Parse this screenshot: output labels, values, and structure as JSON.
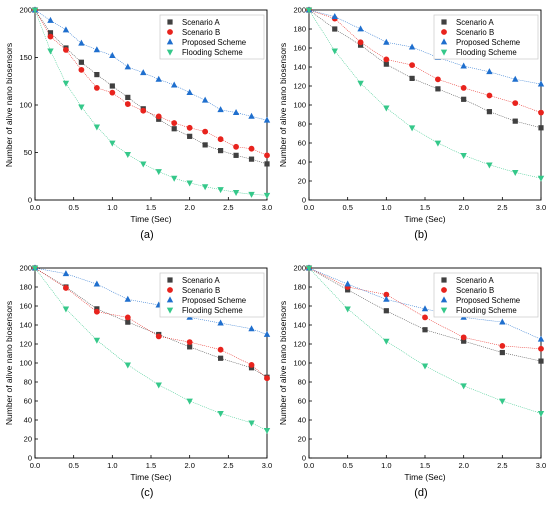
{
  "figure_title": "",
  "colors": {
    "scenario_a": "#404040",
    "scenario_b": "#e8231d",
    "proposed": "#1f6fce",
    "flooding": "#35c88a"
  },
  "chart_data": [
    {
      "type": "line",
      "label": "(a)",
      "xlabel": "Time (Sec)",
      "ylabel": "Number of alive nano biosensors",
      "xlim": [
        0,
        3
      ],
      "ylim": [
        0,
        200
      ],
      "xticks": [
        "0.0",
        "0.5",
        "1.0",
        "1.5",
        "2.0",
        "2.5",
        "3.0"
      ],
      "yticks": [
        "0",
        "50",
        "100",
        "150",
        "200"
      ],
      "legend_position": "top-right",
      "series": [
        {
          "name": "Scenario A",
          "marker": "square",
          "x": [
            0,
            0.2,
            0.4,
            0.6,
            0.8,
            1.0,
            1.2,
            1.4,
            1.6,
            1.8,
            2.0,
            2.2,
            2.4,
            2.6,
            2.8,
            3.0
          ],
          "y": [
            200,
            176,
            160,
            145,
            132,
            120,
            108,
            96,
            85,
            75,
            67,
            58,
            52,
            47,
            43,
            38
          ]
        },
        {
          "name": "Scenario B",
          "marker": "circle",
          "x": [
            0,
            0.2,
            0.4,
            0.6,
            0.8,
            1.0,
            1.2,
            1.4,
            1.6,
            1.8,
            2.0,
            2.2,
            2.4,
            2.6,
            2.8,
            3.0
          ],
          "y": [
            200,
            172,
            158,
            137,
            118,
            113,
            101,
            94,
            88,
            81,
            76,
            72,
            64,
            56,
            54,
            47
          ]
        },
        {
          "name": "Proposed Scheme",
          "marker": "triangle-up",
          "x": [
            0,
            0.2,
            0.4,
            0.6,
            0.8,
            1.0,
            1.2,
            1.4,
            1.6,
            1.8,
            2.0,
            2.2,
            2.4,
            2.6,
            2.8,
            3.0
          ],
          "y": [
            200,
            189,
            179,
            165,
            158,
            152,
            140,
            134,
            127,
            121,
            113,
            105,
            95,
            92,
            88,
            84
          ]
        },
        {
          "name": "Flooding Scheme",
          "marker": "triangle-down",
          "x": [
            0,
            0.2,
            0.4,
            0.6,
            0.8,
            1.0,
            1.2,
            1.4,
            1.6,
            1.8,
            2.0,
            2.2,
            2.4,
            2.6,
            2.8,
            3.0
          ],
          "y": [
            200,
            157,
            123,
            98,
            77,
            60,
            48,
            38,
            30,
            23,
            18,
            14,
            11,
            8,
            6,
            5
          ]
        }
      ]
    },
    {
      "type": "line",
      "label": "(b)",
      "xlabel": "Time (Sec)",
      "ylabel": "Number of alive nano biosensors",
      "xlim": [
        0,
        3
      ],
      "ylim": [
        0,
        200
      ],
      "xticks": [
        "0.0",
        "0.5",
        "1.0",
        "1.5",
        "2.0",
        "2.5",
        "3.0"
      ],
      "yticks": [
        "0",
        "20",
        "40",
        "60",
        "80",
        "100",
        "120",
        "140",
        "160",
        "180",
        "200"
      ],
      "legend_position": "top-right",
      "series": [
        {
          "name": "Scenario A",
          "marker": "square",
          "x": [
            0,
            0.333,
            0.667,
            1.0,
            1.333,
            1.667,
            2.0,
            2.333,
            2.667,
            3.0
          ],
          "y": [
            200,
            180,
            163,
            143,
            128,
            117,
            106,
            93,
            83,
            76
          ]
        },
        {
          "name": "Scenario B",
          "marker": "circle",
          "x": [
            0,
            0.333,
            0.667,
            1.0,
            1.333,
            1.667,
            2.0,
            2.333,
            2.667,
            3.0
          ],
          "y": [
            200,
            191,
            166,
            148,
            142,
            127,
            118,
            110,
            102,
            92
          ]
        },
        {
          "name": "Proposed Scheme",
          "marker": "triangle-up",
          "x": [
            0,
            0.333,
            0.667,
            1.0,
            1.333,
            1.667,
            2.0,
            2.333,
            2.667,
            3.0
          ],
          "y": [
            200,
            193,
            180,
            166,
            161,
            150,
            141,
            135,
            127,
            122
          ]
        },
        {
          "name": "Flooding Scheme",
          "marker": "triangle-down",
          "x": [
            0,
            0.333,
            0.667,
            1.0,
            1.333,
            1.667,
            2.0,
            2.333,
            2.667,
            3.0
          ],
          "y": [
            200,
            157,
            123,
            97,
            76,
            60,
            47,
            37,
            29,
            23
          ]
        }
      ]
    },
    {
      "type": "line",
      "label": "(c)",
      "xlabel": "Time (Sec)",
      "ylabel": "Number of alive nano biosensors",
      "xlim": [
        0,
        3
      ],
      "ylim": [
        0,
        200
      ],
      "xticks": [
        "0.0",
        "0.5",
        "1.0",
        "1.5",
        "2.0",
        "2.5",
        "3.0"
      ],
      "yticks": [
        "0",
        "20",
        "40",
        "60",
        "80",
        "100",
        "120",
        "140",
        "160",
        "180",
        "200"
      ],
      "legend_position": "top-right",
      "series": [
        {
          "name": "Scenario A",
          "marker": "square",
          "x": [
            0,
            0.4,
            0.8,
            1.2,
            1.6,
            2.0,
            2.4,
            2.8,
            3.0
          ],
          "y": [
            200,
            180,
            157,
            143,
            130,
            117,
            105,
            95,
            85
          ]
        },
        {
          "name": "Scenario B",
          "marker": "circle",
          "x": [
            0,
            0.4,
            0.8,
            1.2,
            1.6,
            2.0,
            2.4,
            2.8,
            3.0
          ],
          "y": [
            200,
            179,
            154,
            148,
            128,
            122,
            114,
            98,
            84
          ]
        },
        {
          "name": "Proposed Scheme",
          "marker": "triangle-up",
          "x": [
            0,
            0.4,
            0.8,
            1.2,
            1.6,
            2.0,
            2.4,
            2.8,
            3.0
          ],
          "y": [
            200,
            194,
            183,
            167,
            161,
            148,
            142,
            136,
            130
          ]
        },
        {
          "name": "Flooding Scheme",
          "marker": "triangle-down",
          "x": [
            0,
            0.4,
            0.8,
            1.2,
            1.6,
            2.0,
            2.4,
            2.8,
            3.0
          ],
          "y": [
            200,
            157,
            124,
            98,
            77,
            60,
            47,
            37,
            29
          ]
        }
      ]
    },
    {
      "type": "line",
      "label": "(d)",
      "xlabel": "Time (Sec)",
      "ylabel": "Number of alive nano biosensors",
      "xlim": [
        0,
        3
      ],
      "ylim": [
        0,
        200
      ],
      "xticks": [
        "0.0",
        "0.5",
        "1.0",
        "1.5",
        "2.0",
        "2.5",
        "3.0"
      ],
      "yticks": [
        "0",
        "20",
        "40",
        "60",
        "80",
        "100",
        "120",
        "140",
        "160",
        "180",
        "200"
      ],
      "legend_position": "top-right",
      "series": [
        {
          "name": "Scenario A",
          "marker": "square",
          "x": [
            0,
            0.5,
            1.0,
            1.5,
            2.0,
            2.5,
            3.0
          ],
          "y": [
            200,
            177,
            155,
            135,
            123,
            111,
            102
          ]
        },
        {
          "name": "Scenario B",
          "marker": "circle",
          "x": [
            0,
            0.5,
            1.0,
            1.5,
            2.0,
            2.5,
            3.0
          ],
          "y": [
            200,
            180,
            172,
            148,
            127,
            118,
            115
          ]
        },
        {
          "name": "Proposed Scheme",
          "marker": "triangle-up",
          "x": [
            0,
            0.5,
            1.0,
            1.5,
            2.0,
            2.5,
            3.0
          ],
          "y": [
            200,
            183,
            167,
            157,
            148,
            143,
            125
          ]
        },
        {
          "name": "Flooding Scheme",
          "marker": "triangle-down",
          "x": [
            0,
            0.5,
            1.0,
            1.5,
            2.0,
            2.5,
            3.0
          ],
          "y": [
            200,
            157,
            123,
            97,
            76,
            60,
            47
          ]
        }
      ]
    }
  ]
}
